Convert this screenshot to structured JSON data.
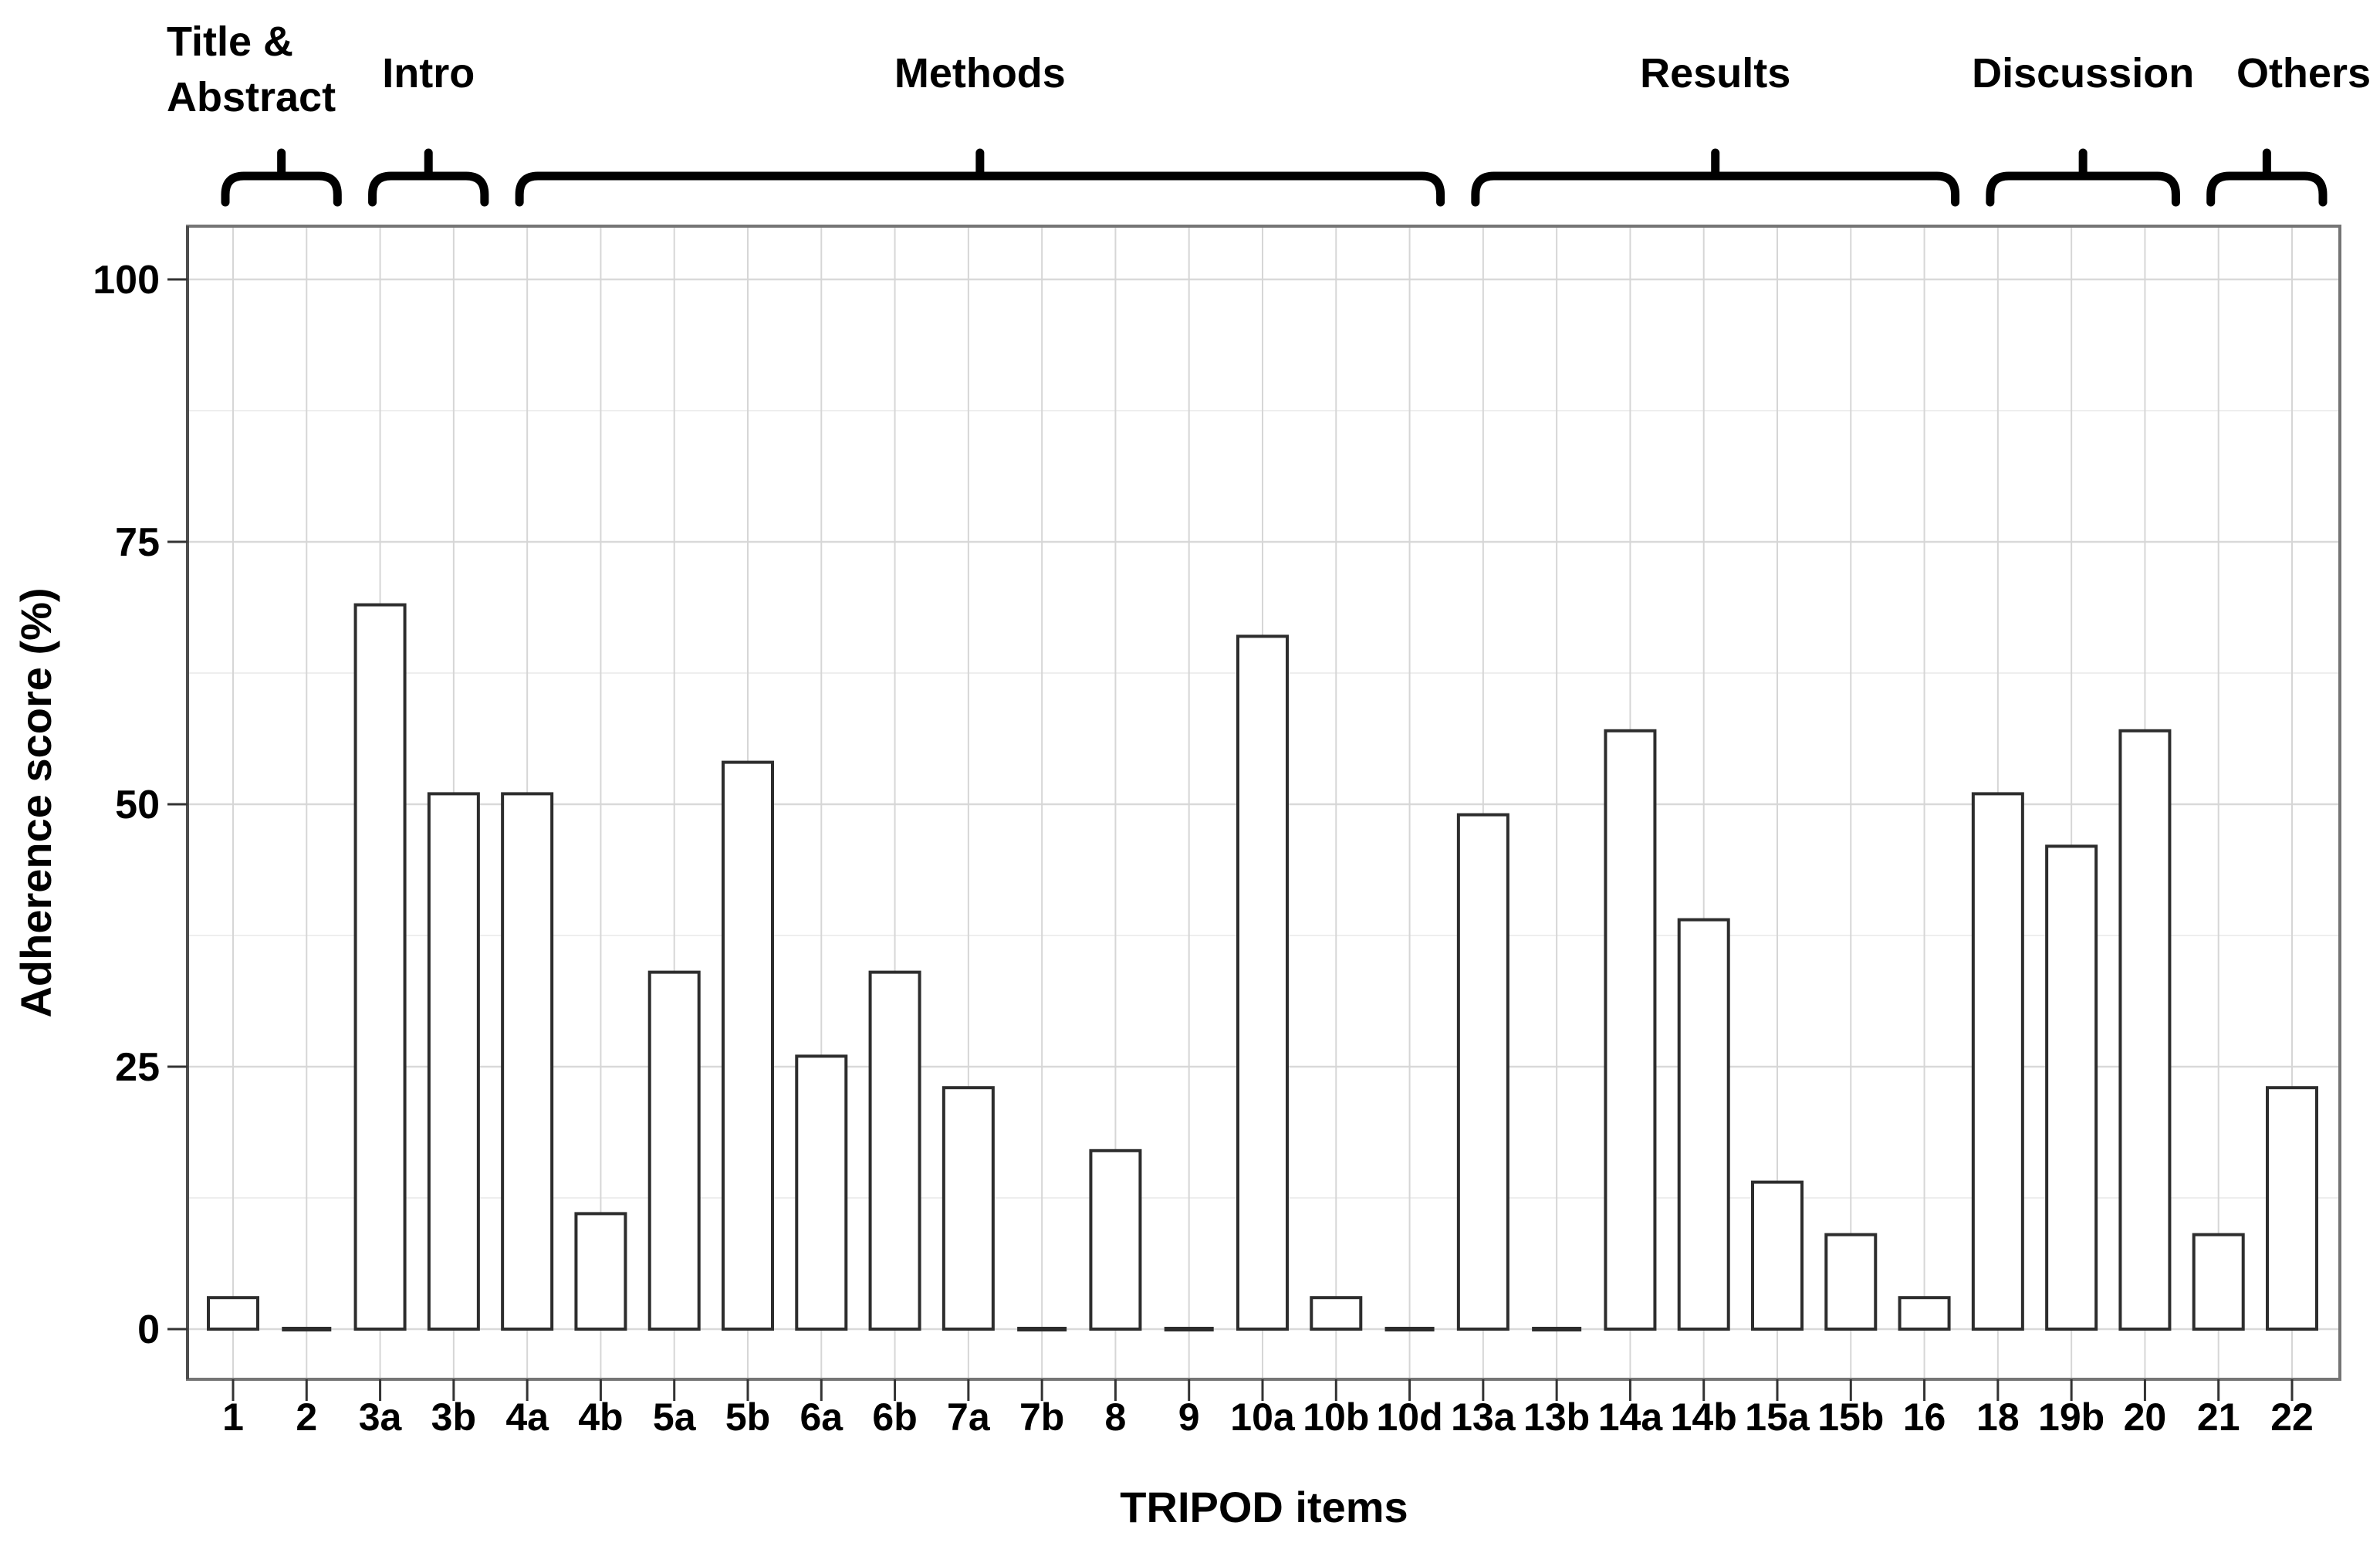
{
  "chart_data": {
    "type": "bar",
    "title": "",
    "xlabel": "TRIPOD items",
    "ylabel": "Adherence score (%)",
    "ylim": [
      0,
      100
    ],
    "yticks": [
      0,
      25,
      50,
      75,
      100
    ],
    "ytick_labels": [
      "0",
      "25",
      "50",
      "75",
      "100"
    ],
    "grid": true,
    "legend": "none",
    "categories": [
      "1",
      "2",
      "3a",
      "3b",
      "4a",
      "4b",
      "5a",
      "5b",
      "6a",
      "6b",
      "7a",
      "7b",
      "8",
      "9",
      "10a",
      "10b",
      "10d",
      "13a",
      "13b",
      "14a",
      "14b",
      "15a",
      "15b",
      "16",
      "18",
      "19b",
      "20",
      "21",
      "22"
    ],
    "values": [
      3,
      0,
      69,
      51,
      51,
      11,
      34,
      54,
      26,
      34,
      23,
      0,
      17,
      0,
      66,
      3,
      0,
      49,
      0,
      57,
      39,
      14,
      9,
      3,
      51,
      46,
      57,
      9,
      23
    ],
    "groups": [
      {
        "label": "Title & Abstract",
        "lines": [
          "Title &",
          "Abstract"
        ],
        "items": [
          "1",
          "2"
        ]
      },
      {
        "label": "Intro",
        "lines": [
          "Intro"
        ],
        "items": [
          "3a",
          "3b"
        ]
      },
      {
        "label": "Methods",
        "lines": [
          "Methods"
        ],
        "items": [
          "4a",
          "4b",
          "5a",
          "5b",
          "6a",
          "6b",
          "7a",
          "7b",
          "8",
          "9",
          "10a",
          "10b",
          "10d"
        ]
      },
      {
        "label": "Results",
        "lines": [
          "Results"
        ],
        "items": [
          "13a",
          "13b",
          "14a",
          "14b",
          "15a",
          "15b",
          "16"
        ]
      },
      {
        "label": "Discussion",
        "lines": [
          "Discussion"
        ],
        "items": [
          "18",
          "19b",
          "20"
        ]
      },
      {
        "label": "Others",
        "lines": [
          "Others"
        ],
        "items": [
          "21",
          "22"
        ]
      }
    ],
    "style": {
      "bar_fill": "#ffffff",
      "bar_stroke": "#2d2d2d",
      "brace_color": "#000000",
      "grid_color": "#d9d9d9",
      "text_color": "#000000"
    }
  }
}
